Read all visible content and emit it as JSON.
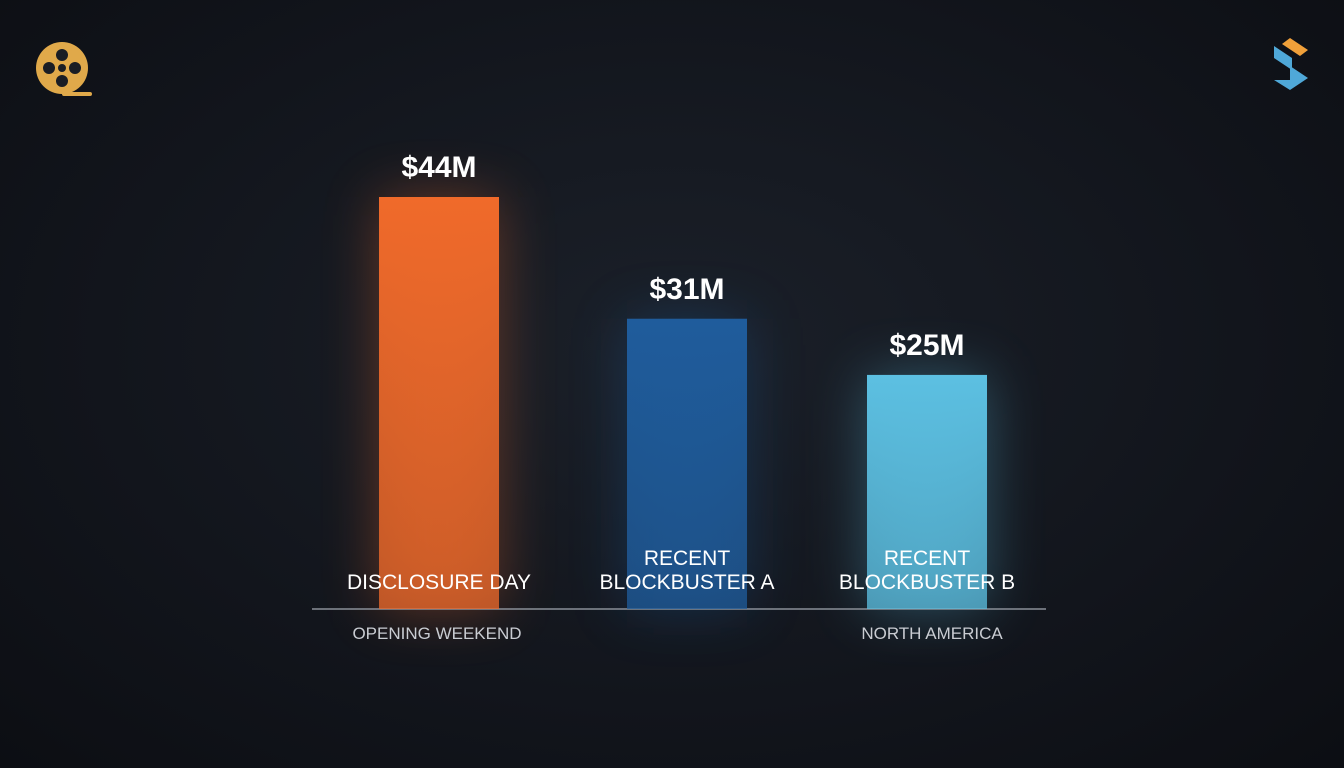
{
  "chart_data": {
    "type": "bar",
    "categories": [
      "DISCLOSURE DAY",
      "RECENT\nBLOCKBUSTER A",
      "RECENT\nBLOCKBUSTER B"
    ],
    "values": [
      44,
      31,
      25
    ],
    "value_labels": [
      "$44M",
      "$31M",
      "$25M"
    ],
    "colors": [
      "#f06a2a",
      "#1f5c9c",
      "#5cc0e2"
    ],
    "annotations": [
      "OPENING WEEKEND",
      "NORTH AMERICA"
    ]
  }
}
